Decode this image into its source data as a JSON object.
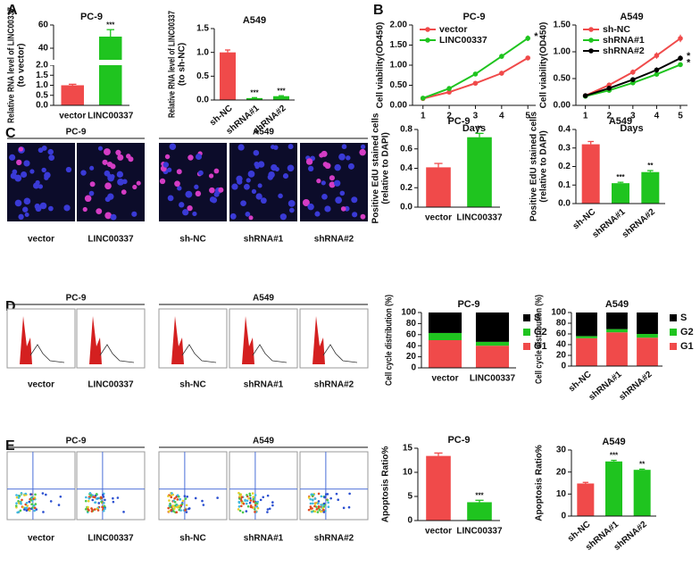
{
  "panel_labels": [
    "A",
    "B",
    "C",
    "D",
    "E"
  ],
  "image_rows": [
    {
      "groups": [
        "PC-9",
        "A549"
      ],
      "labels": [
        "vector",
        "LINC00337",
        "sh-NC",
        "shRNA#1",
        "shRNA#2"
      ]
    },
    {
      "groups": [
        "PC-9",
        "A549"
      ],
      "labels": [
        "vector",
        "LINC00337",
        "sh-NC",
        "shRNA#1",
        "shRNA#2"
      ]
    },
    {
      "groups": [
        "PC-9",
        "A549"
      ],
      "labels": [
        "vector",
        "LINC00337",
        "sh-NC",
        "shRNA#1",
        "shRNA#2"
      ]
    }
  ],
  "chart_data": [
    {
      "type": "bar",
      "title": "PC-9",
      "ylabel": [
        "Relative RNA level of LINC00337",
        "(to vector)"
      ],
      "categories": [
        "vector",
        "LINC00337"
      ],
      "values": [
        1.0,
        50
      ],
      "errors": [
        0.05,
        6
      ],
      "colors": [
        "#f04a4a",
        "#1fc41f"
      ],
      "annotations": [
        null,
        "***"
      ],
      "ylim": [
        0,
        60
      ],
      "axis_break": [
        2,
        30
      ],
      "yticks": [
        {
          "value": 0,
          "label": "0.0"
        },
        {
          "value": 0.5,
          "label": "0.5"
        },
        {
          "value": 1,
          "label": "1.0"
        },
        {
          "value": 1.5,
          "label": "1.5"
        },
        {
          "value": 2,
          "label": "2.0"
        },
        40,
        60
      ]
    },
    {
      "type": "bar",
      "title": "A549",
      "ylabel": [
        "Relative RNA level of LINC00337",
        "(to sh-NC)"
      ],
      "categories": [
        "sh-NC",
        "shRNA#1",
        "shRNA#2"
      ],
      "values": [
        1.0,
        0.04,
        0.08
      ],
      "errors": [
        0.05,
        0.01,
        0.01
      ],
      "colors": [
        "#f04a4a",
        "#1fc41f",
        "#1fc41f"
      ],
      "annotations": [
        null,
        "***",
        "***"
      ],
      "rotate_labels": true,
      "ylim": [
        0,
        1.5
      ],
      "yticks": [
        {
          "value": 0,
          "label": "0.0"
        },
        {
          "value": 0.5,
          "label": "0.5"
        },
        {
          "value": 1,
          "label": "1.0"
        },
        {
          "value": 1.5,
          "label": "1.5"
        }
      ]
    },
    {
      "type": "line",
      "title": "PC-9",
      "ylabel": "Cell viability(OD450)",
      "xlabel": "Days",
      "x": [
        1,
        2,
        3,
        4,
        5
      ],
      "xlim": [
        0.6,
        5.3
      ],
      "xticks": [
        1,
        2,
        3,
        4,
        5
      ],
      "ylim": [
        0,
        2
      ],
      "yticks": [
        {
          "value": 0,
          "label": "0.00"
        },
        {
          "value": 0.5,
          "label": "0.50"
        },
        {
          "value": 1,
          "label": "1.00"
        },
        {
          "value": 1.5,
          "label": "1.50"
        },
        {
          "value": 2,
          "label": "2.00"
        }
      ],
      "series": [
        {
          "name": "vector",
          "color": "#f04a4a",
          "values": [
            0.17,
            0.33,
            0.55,
            0.8,
            1.18
          ],
          "errors": [
            0.02,
            0.03,
            0.04,
            0.06,
            0.05
          ]
        },
        {
          "name": "LINC00337",
          "color": "#1fc41f",
          "values": [
            0.18,
            0.42,
            0.78,
            1.22,
            1.67
          ],
          "errors": [
            0.02,
            0.04,
            0.05,
            0.06,
            0.07
          ],
          "annotation": "*"
        }
      ]
    },
    {
      "type": "line",
      "title": "A549",
      "ylabel": "Cell viability(OD450)",
      "xlabel": "Days",
      "x": [
        1,
        2,
        3,
        4,
        5
      ],
      "xlim": [
        0.6,
        5.3
      ],
      "xticks": [
        1,
        2,
        3,
        4,
        5
      ],
      "ylim": [
        0,
        1.5
      ],
      "yticks": [
        {
          "value": 0,
          "label": "0.00"
        },
        {
          "value": 0.5,
          "label": "0.50"
        },
        {
          "value": 1,
          "label": "1.00"
        },
        {
          "value": 1.5,
          "label": "1.50"
        }
      ],
      "series": [
        {
          "name": "sh-NC",
          "color": "#f04a4a",
          "values": [
            0.18,
            0.38,
            0.62,
            0.93,
            1.25
          ],
          "errors": [
            0.02,
            0.04,
            0.05,
            0.06,
            0.07
          ]
        },
        {
          "name": "shRNA#1",
          "color": "#1fc41f",
          "values": [
            0.17,
            0.28,
            0.42,
            0.58,
            0.76
          ],
          "errors": [
            0.02,
            0.03,
            0.04,
            0.04,
            0.04
          ],
          "annotation": "*"
        },
        {
          "name": "shRNA#2",
          "color": "#000000",
          "values": [
            0.18,
            0.32,
            0.48,
            0.66,
            0.88
          ],
          "errors": [
            0.02,
            0.03,
            0.04,
            0.05,
            0.05
          ],
          "annotation": "*"
        }
      ]
    },
    {
      "type": "bar",
      "title": "PC-9",
      "ylabel": [
        "Positive EdU stained cells",
        "(relative to DAPI)"
      ],
      "categories": [
        "vector",
        "LINC00337"
      ],
      "values": [
        0.41,
        0.72
      ],
      "errors": [
        0.04,
        0.04
      ],
      "colors": [
        "#f04a4a",
        "#1fc41f"
      ],
      "annotations": [
        null,
        "**"
      ],
      "ylim": [
        0,
        0.8
      ],
      "yticks": [
        {
          "value": 0,
          "label": "0.0"
        },
        0.2,
        0.4,
        0.6,
        0.8
      ]
    },
    {
      "type": "bar",
      "title": "A549",
      "ylabel": [
        "Positive EdU stained cells",
        "(relative to DAPI)"
      ],
      "categories": [
        "sh-NC",
        "shRNA#1",
        "shRNA#2"
      ],
      "values": [
        0.32,
        0.11,
        0.17
      ],
      "errors": [
        0.015,
        0.005,
        0.008
      ],
      "colors": [
        "#f04a4a",
        "#1fc41f",
        "#1fc41f"
      ],
      "annotations": [
        null,
        "***",
        "**"
      ],
      "rotate_labels": true,
      "ylim": [
        0,
        0.4
      ],
      "yticks": [
        {
          "value": 0,
          "label": "0.0"
        },
        0.1,
        0.2,
        0.3,
        0.4
      ]
    },
    {
      "type": "stacked_bar",
      "title": "PC-9",
      "ylabel": "Cell cycle distribution (%)",
      "categories": [
        "vector",
        "LINC00337"
      ],
      "ylim": [
        0,
        100
      ],
      "yticks": [
        0,
        20,
        40,
        60,
        80,
        100
      ],
      "legend": "right",
      "series": [
        {
          "name": "G1",
          "color": "#f04a4a",
          "values": [
            50,
            40
          ]
        },
        {
          "name": "G2",
          "color": "#1fc41f",
          "values": [
            13,
            7
          ]
        },
        {
          "name": "S",
          "color": "#000000",
          "values": [
            37,
            53
          ]
        }
      ]
    },
    {
      "type": "stacked_bar",
      "title": "A549",
      "ylabel": "Cell cycle distribution (%)",
      "categories": [
        "sh-NC",
        "shRNA#1",
        "shRNA#2"
      ],
      "ylim": [
        0,
        100
      ],
      "yticks": [
        0,
        20,
        40,
        60,
        80,
        100
      ],
      "legend": "right",
      "rotate_labels": true,
      "series": [
        {
          "name": "G1",
          "color": "#f04a4a",
          "values": [
            52,
            63,
            53
          ]
        },
        {
          "name": "G2",
          "color": "#1fc41f",
          "values": [
            4,
            6,
            7
          ]
        },
        {
          "name": "S",
          "color": "#000000",
          "values": [
            44,
            31,
            40
          ]
        }
      ]
    },
    {
      "type": "bar",
      "title": "PC-9",
      "ylabel": "Apoptosis Ratio%",
      "categories": [
        "vector",
        "LINC00337"
      ],
      "values": [
        13.4,
        3.8
      ],
      "errors": [
        0.6,
        0.4
      ],
      "colors": [
        "#f04a4a",
        "#1fc41f"
      ],
      "annotations": [
        null,
        "***"
      ],
      "ylim": [
        0,
        15
      ],
      "yticks": [
        0,
        5,
        10,
        15
      ]
    },
    {
      "type": "bar",
      "title": "A549",
      "ylabel": "Apoptosis Ratio%",
      "categories": [
        "sh-NC",
        "shRNA#1",
        "shRNA#2"
      ],
      "values": [
        14.8,
        24.8,
        21.0
      ],
      "errors": [
        0.5,
        0.5,
        0.3
      ],
      "colors": [
        "#f04a4a",
        "#1fc41f",
        "#1fc41f"
      ],
      "annotations": [
        null,
        "***",
        "**"
      ],
      "rotate_labels": true,
      "ylim": [
        0,
        30
      ],
      "yticks": [
        0,
        10,
        20,
        30
      ]
    }
  ]
}
